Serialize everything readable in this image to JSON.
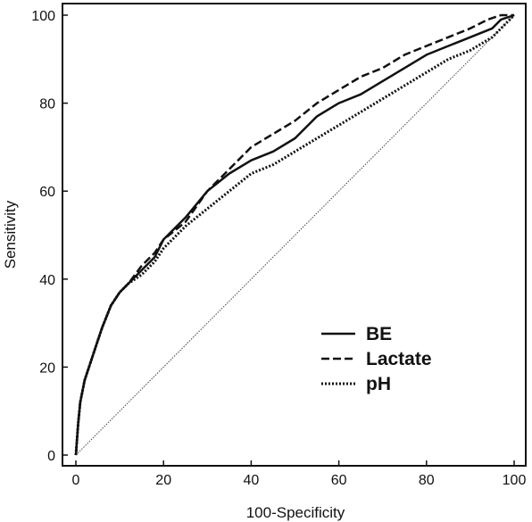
{
  "chart_data": {
    "type": "line",
    "title": "",
    "xlabel": "100-Specificity",
    "ylabel": "Sensitivity",
    "xlim": [
      0,
      100
    ],
    "ylim": [
      0,
      100
    ],
    "xticks": [
      "0",
      "20",
      "40",
      "60",
      "80",
      "100"
    ],
    "yticks": [
      "0",
      "20",
      "40",
      "60",
      "80",
      "100"
    ],
    "grid": false,
    "legend_position": "bottom-right",
    "reference_line": {
      "x": [
        0,
        100
      ],
      "y": [
        0,
        100
      ],
      "style": "dotted"
    },
    "series": [
      {
        "name": "BE",
        "style": "solid",
        "color": "#111111",
        "x": [
          0,
          0.5,
          1,
          2,
          3,
          4,
          5,
          6,
          8,
          10,
          12,
          15,
          18,
          20,
          25,
          30,
          35,
          40,
          45,
          50,
          55,
          60,
          65,
          70,
          75,
          80,
          85,
          90,
          95,
          97,
          100
        ],
        "y": [
          0,
          7,
          12,
          17,
          20,
          23,
          26,
          29,
          34,
          37,
          39,
          42,
          45,
          49,
          54,
          60,
          64,
          67,
          69,
          72,
          77,
          80,
          82,
          85,
          88,
          91,
          93,
          95,
          97,
          99,
          100
        ]
      },
      {
        "name": "Lactate",
        "style": "dashed",
        "color": "#111111",
        "x": [
          0,
          0.5,
          1,
          2,
          3,
          4,
          5,
          6,
          8,
          10,
          12,
          15,
          18,
          20,
          25,
          30,
          35,
          40,
          45,
          50,
          55,
          60,
          65,
          70,
          75,
          80,
          85,
          90,
          94,
          97,
          100
        ],
        "y": [
          0,
          7,
          12,
          17,
          20,
          23,
          26,
          29,
          34,
          37,
          39,
          43,
          46,
          49,
          53,
          60,
          65,
          70,
          73,
          76,
          80,
          83,
          86,
          88,
          91,
          93,
          95,
          97,
          99,
          100,
          100
        ]
      },
      {
        "name": "pH",
        "style": "dotted",
        "color": "#111111",
        "x": [
          0,
          0.5,
          1,
          2,
          3,
          4,
          5,
          6,
          8,
          10,
          12,
          15,
          18,
          20,
          25,
          30,
          35,
          40,
          45,
          50,
          55,
          60,
          65,
          70,
          75,
          80,
          85,
          90,
          95,
          100
        ],
        "y": [
          0,
          7,
          12,
          17,
          20,
          23,
          26,
          29,
          34,
          37,
          39,
          41,
          44,
          47,
          52,
          56,
          60,
          64,
          66,
          69,
          72,
          75,
          78,
          81,
          84,
          87,
          90,
          92,
          95,
          100
        ]
      }
    ]
  }
}
